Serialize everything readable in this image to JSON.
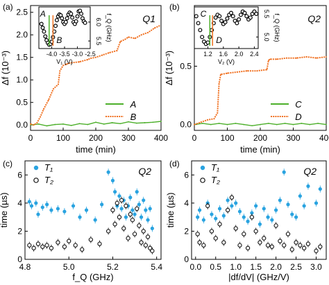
{
  "colors": {
    "green": "#4caf2a",
    "orange": "#f07020",
    "blue": "#29a3e0",
    "black": "#111111"
  },
  "chart_data": [
    {
      "panel": "(a)",
      "type": "line",
      "annotation": "Q1",
      "xlabel": "time (min)",
      "ylabel": "Δf (10⁻³)",
      "xlim": [
        0,
        400
      ],
      "ylim": [
        -0.12,
        2.65
      ],
      "xticks": [
        "0",
        "100",
        "200",
        "300",
        "400"
      ],
      "yticks": [
        "0.0",
        "0.5",
        "1.0",
        "1.5",
        "2.0",
        "2.5"
      ],
      "legend": "bottom-right",
      "series": [
        {
          "name": "A",
          "color": "green",
          "style": "solid",
          "x": [
            0,
            25,
            50,
            75,
            100,
            125,
            150,
            175,
            200,
            225,
            250,
            275,
            300,
            325,
            350,
            375,
            400
          ],
          "y": [
            0.0,
            0.02,
            -0.02,
            0.01,
            0.02,
            -0.01,
            0.03,
            0.01,
            0.06,
            0.02,
            0.05,
            0.03,
            0.07,
            0.04,
            0.05,
            0.06,
            0.08
          ]
        },
        {
          "name": "B",
          "color": "orange",
          "style": "dotted",
          "x": [
            0,
            10,
            20,
            30,
            40,
            55,
            70,
            85,
            90,
            100,
            110,
            125,
            150,
            175,
            185,
            200,
            220,
            240,
            265,
            275,
            290,
            300,
            320,
            340,
            360,
            380,
            395
          ],
          "y": [
            0.02,
            0.0,
            0.05,
            0.18,
            0.35,
            0.55,
            0.8,
            0.9,
            1.2,
            1.32,
            1.35,
            1.38,
            1.4,
            1.45,
            1.48,
            1.5,
            1.55,
            1.6,
            1.65,
            1.85,
            1.9,
            1.95,
            1.92,
            2.0,
            2.05,
            2.15,
            2.2
          ]
        }
      ],
      "inset": {
        "xlabel": "V₁ (V)",
        "ylabel": "f_Q (GHz)",
        "xlim": [
          -4.5,
          -2.5
        ],
        "ylim": [
          5.3,
          6.4
        ],
        "xticks": [
          "-4.0",
          "-3.5",
          "-3.0",
          "-2.5"
        ],
        "yticks": [
          "5.5",
          "6.0"
        ],
        "marker_A_x": -4.1,
        "marker_B_x": -3.95,
        "label_A": "A",
        "label_B": "B",
        "x": [
          -4.4,
          -4.35,
          -4.3,
          -4.25,
          -4.2,
          -4.15,
          -4.1,
          -4.05,
          -4.0,
          -3.95,
          -3.9,
          -3.85,
          -3.8,
          -3.75,
          -3.7,
          -3.65,
          -3.6,
          -3.55,
          -3.5,
          -3.45,
          -3.4,
          -3.35,
          -3.3,
          -3.25,
          -3.2,
          -3.15,
          -3.1,
          -3.05,
          -3.0,
          -2.95,
          -2.9,
          -2.85,
          -2.8,
          -2.75,
          -2.7
        ],
        "y": [
          5.95,
          5.85,
          5.75,
          5.62,
          5.52,
          5.45,
          5.4,
          5.42,
          5.48,
          5.6,
          5.75,
          5.9,
          6.05,
          6.15,
          6.2,
          6.18,
          6.1,
          6.0,
          5.95,
          6.0,
          6.1,
          6.2,
          6.25,
          6.22,
          6.12,
          6.0,
          5.95,
          6.02,
          6.15,
          6.28,
          6.3,
          6.22,
          6.1,
          6.02,
          5.98
        ]
      }
    },
    {
      "panel": "(b)",
      "type": "line",
      "annotation": "Q2",
      "xlabel": "time (min)",
      "ylabel": "Δf (10⁻³)",
      "xlim": [
        0,
        400
      ],
      "ylim": [
        -0.05,
        1.02
      ],
      "xticks": [
        "0",
        "100",
        "200",
        "300",
        "400"
      ],
      "yticks": [
        "0.0",
        "0.5"
      ],
      "legend": "bottom-right",
      "series": [
        {
          "name": "C",
          "color": "green",
          "style": "solid",
          "x": [
            0,
            25,
            50,
            75,
            100,
            125,
            150,
            175,
            200,
            225,
            250,
            275,
            300,
            325,
            350,
            375,
            400
          ],
          "y": [
            0.0,
            0.01,
            0.0,
            0.01,
            0.0,
            0.01,
            0.0,
            -0.01,
            0.0,
            0.01,
            0.0,
            0.01,
            0.0,
            0.01,
            0.0,
            0.01,
            0.0
          ]
        },
        {
          "name": "D",
          "color": "orange",
          "style": "dotted",
          "x": [
            0,
            20,
            40,
            60,
            70,
            75,
            80,
            100,
            130,
            160,
            190,
            220,
            225,
            230,
            250,
            280,
            310,
            340,
            370,
            400
          ],
          "y": [
            0.0,
            0.02,
            0.04,
            0.05,
            0.1,
            0.35,
            0.43,
            0.44,
            0.45,
            0.46,
            0.46,
            0.47,
            0.55,
            0.56,
            0.56,
            0.57,
            0.57,
            0.58,
            0.57,
            0.58
          ]
        }
      ],
      "inset": {
        "xlabel": "V₂ (V)",
        "ylabel": "f_Q (GHz)",
        "xlim": [
          0.85,
          2.5
        ],
        "ylim": [
          4.75,
          5.65
        ],
        "xticks": [
          "0.8",
          "1.2",
          "1.6",
          "2.0",
          "2.4"
        ],
        "yticks": [
          "5.0",
          "5.5"
        ],
        "marker_C_x": 1.25,
        "marker_D_x": 1.32,
        "label_C": "C",
        "label_D": "D",
        "x": [
          0.9,
          0.95,
          1.0,
          1.05,
          1.1,
          1.15,
          1.2,
          1.25,
          1.3,
          1.35,
          1.4,
          1.45,
          1.5,
          1.55,
          1.6,
          1.65,
          1.7,
          1.75,
          1.8,
          1.85,
          1.9,
          1.95,
          2.0,
          2.05,
          2.1,
          2.15,
          2.2,
          2.25,
          2.3,
          2.35,
          2.4,
          2.45
        ],
        "y": [
          5.45,
          5.3,
          5.15,
          5.0,
          4.9,
          4.85,
          4.88,
          5.0,
          5.15,
          5.3,
          5.42,
          5.48,
          5.45,
          5.35,
          5.28,
          5.32,
          5.4,
          5.48,
          5.52,
          5.45,
          5.35,
          5.3,
          5.38,
          5.48,
          5.55,
          5.52,
          5.45,
          5.38,
          5.42,
          5.5,
          5.55,
          5.5
        ]
      }
    },
    {
      "panel": "(c)",
      "type": "scatter",
      "annotation": "Q2",
      "xlabel": "f_Q (GHz)",
      "ylabel": "time (µs)",
      "xlim": [
        4.8,
        5.42
      ],
      "ylim": [
        0,
        7
      ],
      "xticks": [
        "4.8",
        "5.0",
        "5.2",
        "5.4"
      ],
      "yticks": [
        "0",
        "2",
        "4",
        "6"
      ],
      "legend": "top-left",
      "series": [
        {
          "name": "T₁",
          "color": "blue",
          "marker": "filled-circle",
          "x": [
            4.82,
            4.83,
            4.85,
            4.86,
            4.88,
            4.9,
            4.92,
            4.95,
            4.98,
            5.02,
            5.05,
            5.08,
            5.12,
            5.15,
            5.18,
            5.2,
            5.21,
            5.22,
            5.23,
            5.24,
            5.25,
            5.26,
            5.27,
            5.28,
            5.29,
            5.3,
            5.31,
            5.32,
            5.33,
            5.34,
            5.35,
            5.36,
            5.37,
            5.38
          ],
          "y": [
            4.1,
            3.8,
            4.0,
            3.2,
            3.7,
            3.9,
            3.5,
            3.6,
            3.4,
            3.8,
            3.0,
            3.5,
            2.8,
            3.9,
            6.2,
            5.6,
            4.8,
            3.8,
            4.5,
            3.6,
            4.2,
            3.0,
            3.8,
            4.4,
            3.5,
            3.2,
            4.8,
            3.9,
            3.0,
            4.2,
            3.5,
            2.8,
            3.6,
            2.2
          ]
        },
        {
          "name": "T₂",
          "color": "black",
          "marker": "open-circle",
          "x": [
            4.82,
            4.84,
            4.86,
            4.88,
            4.9,
            4.92,
            4.95,
            4.98,
            5.0,
            5.03,
            5.06,
            5.1,
            5.14,
            5.18,
            5.2,
            5.21,
            5.22,
            5.23,
            5.24,
            5.25,
            5.26,
            5.27,
            5.28,
            5.29,
            5.3,
            5.31,
            5.32,
            5.33,
            5.34,
            5.35,
            5.36,
            5.37,
            5.38
          ],
          "y": [
            1.0,
            0.8,
            1.1,
            0.9,
            1.0,
            0.8,
            1.2,
            0.9,
            1.3,
            1.0,
            0.7,
            1.4,
            1.1,
            2.0,
            3.5,
            2.5,
            4.0,
            3.0,
            4.2,
            2.2,
            3.8,
            1.5,
            3.2,
            2.8,
            1.8,
            3.6,
            2.4,
            1.2,
            2.0,
            1.0,
            1.6,
            0.8,
            0.6
          ]
        }
      ]
    },
    {
      "panel": "(d)",
      "type": "scatter",
      "annotation": "Q2",
      "xlabel": "|df/dV| (GHz/V)",
      "ylabel": "time (µs)",
      "xlim": [
        -0.1,
        3.25
      ],
      "ylim": [
        0,
        7
      ],
      "xticks": [
        "0.0",
        "0.5",
        "1.0",
        "1.5",
        "2.0",
        "2.5",
        "3.0"
      ],
      "yticks": [
        "0",
        "2",
        "4",
        "6"
      ],
      "legend": "top-left",
      "series": [
        {
          "name": "T₁",
          "color": "blue",
          "marker": "filled-circle",
          "x": [
            0.05,
            0.1,
            0.2,
            0.3,
            0.4,
            0.5,
            0.6,
            0.7,
            0.8,
            0.9,
            1.0,
            1.1,
            1.2,
            1.3,
            1.4,
            1.5,
            1.6,
            1.7,
            1.8,
            1.9,
            2.0,
            2.1,
            2.2,
            2.3,
            2.4,
            2.5,
            2.6,
            2.7,
            2.8,
            3.0,
            3.1
          ],
          "y": [
            3.0,
            3.5,
            2.8,
            4.0,
            3.2,
            2.9,
            3.6,
            3.1,
            4.2,
            3.8,
            4.0,
            3.4,
            3.0,
            2.7,
            3.3,
            3.8,
            2.5,
            3.6,
            3.0,
            2.8,
            3.5,
            4.2,
            6.2,
            3.9,
            3.2,
            3.0,
            4.5,
            3.8,
            5.2,
            4.0,
            5.0
          ]
        },
        {
          "name": "T₂",
          "color": "black",
          "marker": "open-circle",
          "x": [
            0.05,
            0.1,
            0.2,
            0.3,
            0.4,
            0.5,
            0.6,
            0.7,
            0.8,
            0.9,
            1.0,
            1.1,
            1.2,
            1.3,
            1.4,
            1.5,
            1.6,
            1.7,
            1.8,
            1.9,
            2.0,
            2.1,
            2.2,
            2.3,
            2.4,
            2.5,
            2.6,
            2.7,
            2.8,
            3.0,
            3.1
          ],
          "y": [
            1.8,
            1.2,
            1.0,
            3.8,
            2.0,
            1.5,
            2.5,
            1.2,
            3.5,
            4.4,
            2.2,
            1.0,
            1.8,
            0.8,
            3.0,
            2.0,
            1.2,
            1.5,
            1.0,
            0.9,
            2.4,
            1.3,
            1.0,
            1.8,
            0.7,
            1.2,
            1.0,
            0.8,
            1.1,
            0.6,
            0.9
          ]
        }
      ]
    }
  ]
}
